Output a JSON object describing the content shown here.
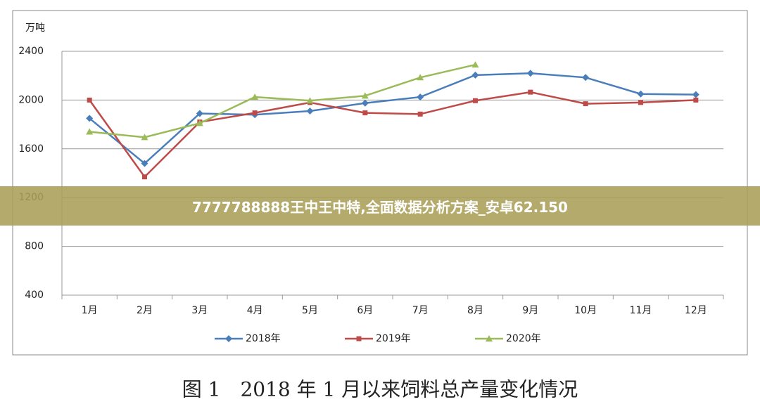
{
  "chart_data": {
    "type": "line",
    "y_label": "万吨",
    "categories": [
      "1月",
      "2月",
      "3月",
      "4月",
      "5月",
      "6月",
      "7月",
      "8月",
      "9月",
      "10月",
      "11月",
      "12月"
    ],
    "series": [
      {
        "name": "2018年",
        "color": "#4a7ebb",
        "marker": "diamond",
        "values": [
          1850,
          1480,
          1890,
          1880,
          1910,
          1975,
          2025,
          2205,
          2220,
          2185,
          2050,
          2045
        ]
      },
      {
        "name": "2019年",
        "color": "#be4b48",
        "marker": "square",
        "values": [
          2000,
          1370,
          1820,
          1895,
          1980,
          1895,
          1885,
          1995,
          2065,
          1970,
          1980,
          2000
        ]
      },
      {
        "name": "2020年",
        "color": "#9bbb59",
        "marker": "triangle",
        "values": [
          1740,
          1695,
          1810,
          2025,
          1995,
          2035,
          2185,
          2290,
          null,
          null,
          null,
          null
        ]
      }
    ],
    "ylim": [
      400,
      2400
    ],
    "yticks": [
      400,
      800,
      1200,
      1600,
      2000,
      2400
    ],
    "grid": true,
    "legend": "bottom"
  },
  "caption": "图 1　2018 年 1 月以来饲料总产量变化情况",
  "banner": "7777788888王中王中特,全面数据分析方案_安卓62.150"
}
